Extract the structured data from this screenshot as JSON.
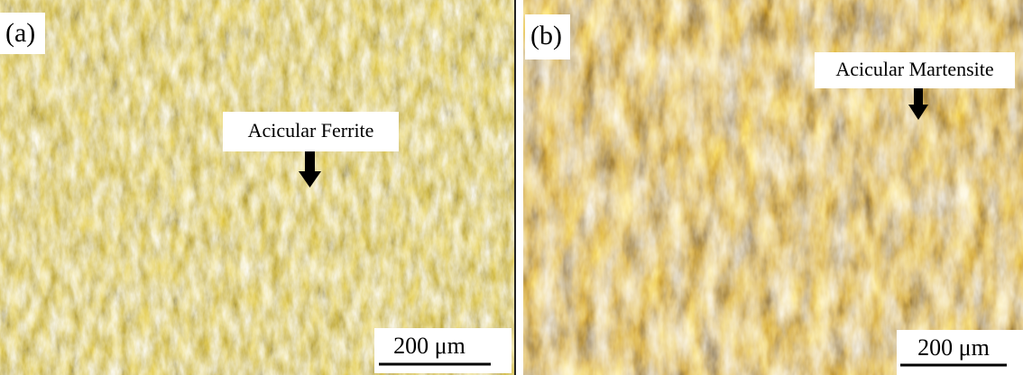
{
  "panels": [
    {
      "label": "(a)",
      "annotation": "Acicular Ferrite",
      "scale_bar": "200 μm"
    },
    {
      "label": "(b)",
      "annotation": "Acicular Martensite",
      "scale_bar": "200 μm"
    }
  ]
}
